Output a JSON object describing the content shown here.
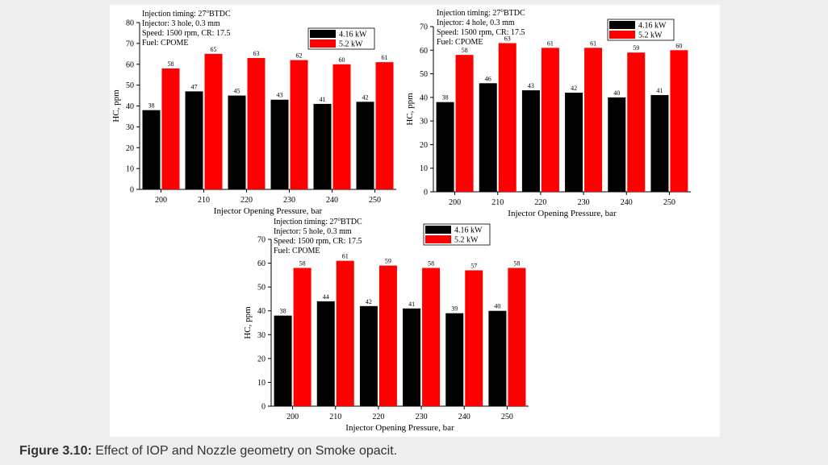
{
  "caption": {
    "label": "Figure 3.10:",
    "text": " Effect of IOP and Nozzle geometry on Smoke opacit."
  },
  "colors": {
    "series1": "#000000",
    "series2": "#ff0000"
  },
  "chart_data": [
    {
      "type": "bar",
      "categories": [
        "200",
        "210",
        "220",
        "230",
        "240",
        "250"
      ],
      "series": [
        {
          "name": "4.16 kW",
          "values": [
            38,
            47,
            45,
            43,
            41,
            42
          ]
        },
        {
          "name": "5.2 kW",
          "values": [
            58,
            65,
            63,
            62,
            60,
            61
          ]
        }
      ],
      "xlabel": "Injector Opening Pressure, bar",
      "ylabel": "HC, ppm",
      "ylim": [
        0,
        80
      ],
      "yticks": [
        0,
        10,
        20,
        30,
        40,
        50,
        60,
        70,
        80
      ],
      "annotation": {
        "l1_prefix": "Injection timing: 27",
        "l1_sup": "o",
        "l1_suffix": "BTDC",
        "l2": "Injector: 3 hole, 0.3 mm",
        "l3": "Speed: 1500 rpm, CR: 17.5",
        "l4": "Fuel: CPOME"
      },
      "legend_position": "top-right"
    },
    {
      "type": "bar",
      "categories": [
        "200",
        "210",
        "220",
        "230",
        "240",
        "250"
      ],
      "series": [
        {
          "name": "4.16 kW",
          "values": [
            38,
            46,
            43,
            42,
            40,
            41
          ]
        },
        {
          "name": "5.2 kW",
          "values": [
            58,
            63,
            61,
            61,
            59,
            60
          ]
        }
      ],
      "data_labels": [
        [
          "38",
          "46",
          "43",
          "42",
          "40",
          "41"
        ],
        [
          "58",
          "63",
          "61",
          "61",
          "59",
          "60"
        ]
      ],
      "xlabel": "Injector Opening Pressure, bar",
      "ylabel": "HC, ppm",
      "ylim": [
        0,
        70
      ],
      "yticks": [
        0,
        10,
        20,
        30,
        40,
        50,
        60,
        70
      ],
      "annotation": {
        "l1_prefix": "Injection timing: 27",
        "l1_sup": "o",
        "l1_suffix": "BTDC",
        "l2": "Injector: 4 hole, 0.3 mm",
        "l3": "Speed: 1500 rpm, CR: 17.5",
        "l4": "Fuel: CPOME"
      },
      "legend_position": "top-right"
    },
    {
      "type": "bar",
      "categories": [
        "200",
        "210",
        "220",
        "230",
        "240",
        "250"
      ],
      "series": [
        {
          "name": "4.16 kW",
          "values": [
            38,
            44,
            42,
            41,
            39,
            40
          ]
        },
        {
          "name": "5.2 kW",
          "values": [
            58,
            61,
            59,
            58,
            57,
            58
          ]
        }
      ],
      "xlabel": "Injector Opening Pressure, bar",
      "ylabel": "HC, ppm",
      "ylim": [
        0,
        70
      ],
      "yticks": [
        0,
        10,
        20,
        30,
        40,
        50,
        60,
        70
      ],
      "annotation": {
        "l1_prefix": "Injection timing: 27",
        "l1_sup": "o",
        "l1_suffix": "BTDC",
        "l2": "Injector: 5 hole, 0.3 mm",
        "l3": "Speed: 1500 rpm, CR: 17.5",
        "l4": "Fuel: CPOME"
      },
      "legend_position": "top-right"
    }
  ]
}
